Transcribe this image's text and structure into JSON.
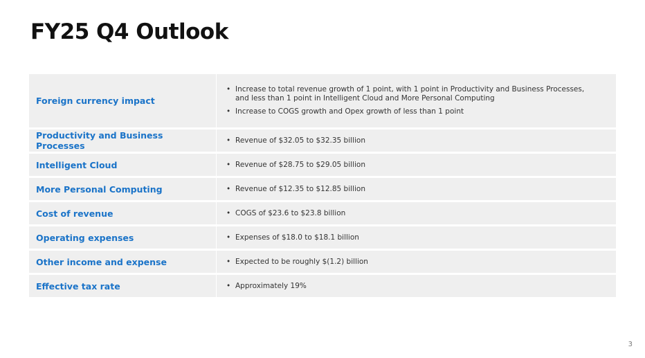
{
  "title": "FY25 Q4 Outlook",
  "table": {
    "rows": [
      {
        "label": "Foreign currency impact",
        "items": [
          "Increase to total revenue growth of 1 point, with 1 point in Productivity and Business Processes, and less than 1 point in Intelligent Cloud and More Personal Computing",
          "Increase to COGS growth and Opex growth of less than 1 point"
        ]
      },
      {
        "label": "Productivity and Business Processes",
        "items": [
          "Revenue of $32.05 to $32.35 billion"
        ]
      },
      {
        "label": "Intelligent Cloud",
        "items": [
          "Revenue of $28.75 to $29.05 billion"
        ]
      },
      {
        "label": "More Personal Computing",
        "items": [
          "Revenue of $12.35 to $12.85 billion"
        ]
      },
      {
        "label": "Cost of revenue",
        "items": [
          "COGS of $23.6 to $23.8 billion"
        ]
      },
      {
        "label": "Operating expenses",
        "items": [
          "Expenses of $18.0 to $18.1 billion"
        ]
      },
      {
        "label": "Other income and expense",
        "items": [
          "Expected to be roughly $(1.2) billion"
        ]
      },
      {
        "label": "Effective tax rate",
        "items": [
          "Approximately 19%"
        ]
      }
    ]
  },
  "page_number": "3"
}
